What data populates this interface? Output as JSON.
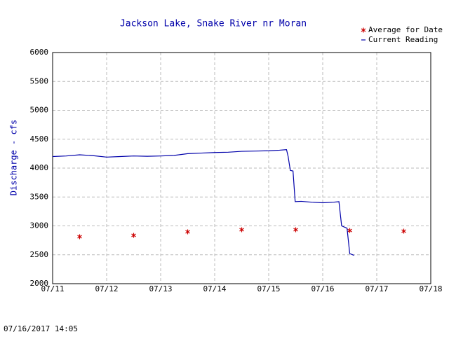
{
  "chart_data": {
    "type": "line",
    "title": "Jackson Lake, Snake River nr Moran",
    "y_label": "Discharge - cfs",
    "timestamp": "07/16/2017 14:05",
    "xlim": [
      11,
      18
    ],
    "xticks": [
      {
        "value": 11,
        "label": "07/11"
      },
      {
        "value": 12,
        "label": "07/12"
      },
      {
        "value": 13,
        "label": "07/13"
      },
      {
        "value": 14,
        "label": "07/14"
      },
      {
        "value": 15,
        "label": "07/15"
      },
      {
        "value": 16,
        "label": "07/16"
      },
      {
        "value": 17,
        "label": "07/17"
      },
      {
        "value": 18,
        "label": "07/18"
      }
    ],
    "ylim": [
      2000,
      6000
    ],
    "yticks": [
      2000,
      2500,
      3000,
      3500,
      4000,
      4500,
      5000,
      5500,
      6000
    ],
    "grid": true,
    "legend": "top-right",
    "series": [
      {
        "name": "Average for Date",
        "color": "#cc0000",
        "style": "star",
        "x": [
          11.5,
          12.5,
          13.5,
          14.5,
          15.5,
          16.5,
          17.5
        ],
        "values": [
          2812,
          2836,
          2897,
          2933,
          2933,
          2920,
          2909
        ]
      },
      {
        "name": "Current Reading",
        "color": "#0000aa",
        "style": "line",
        "x": [
          11.0,
          11.25,
          11.5,
          11.75,
          12.0,
          12.25,
          12.5,
          12.75,
          13.0,
          13.25,
          13.5,
          13.75,
          14.0,
          14.25,
          14.5,
          14.75,
          15.0,
          15.2,
          15.33,
          15.36,
          15.4,
          15.45,
          15.49,
          15.6,
          15.8,
          16.0,
          16.2,
          16.3,
          16.35,
          16.45,
          16.48,
          16.5,
          16.58
        ],
        "values": [
          4200,
          4210,
          4230,
          4215,
          4190,
          4200,
          4210,
          4205,
          4210,
          4220,
          4250,
          4260,
          4270,
          4275,
          4290,
          4295,
          4300,
          4310,
          4320,
          4200,
          3960,
          3950,
          3420,
          3425,
          3410,
          3400,
          3410,
          3420,
          3000,
          2960,
          2700,
          2520,
          2490
        ]
      }
    ]
  }
}
